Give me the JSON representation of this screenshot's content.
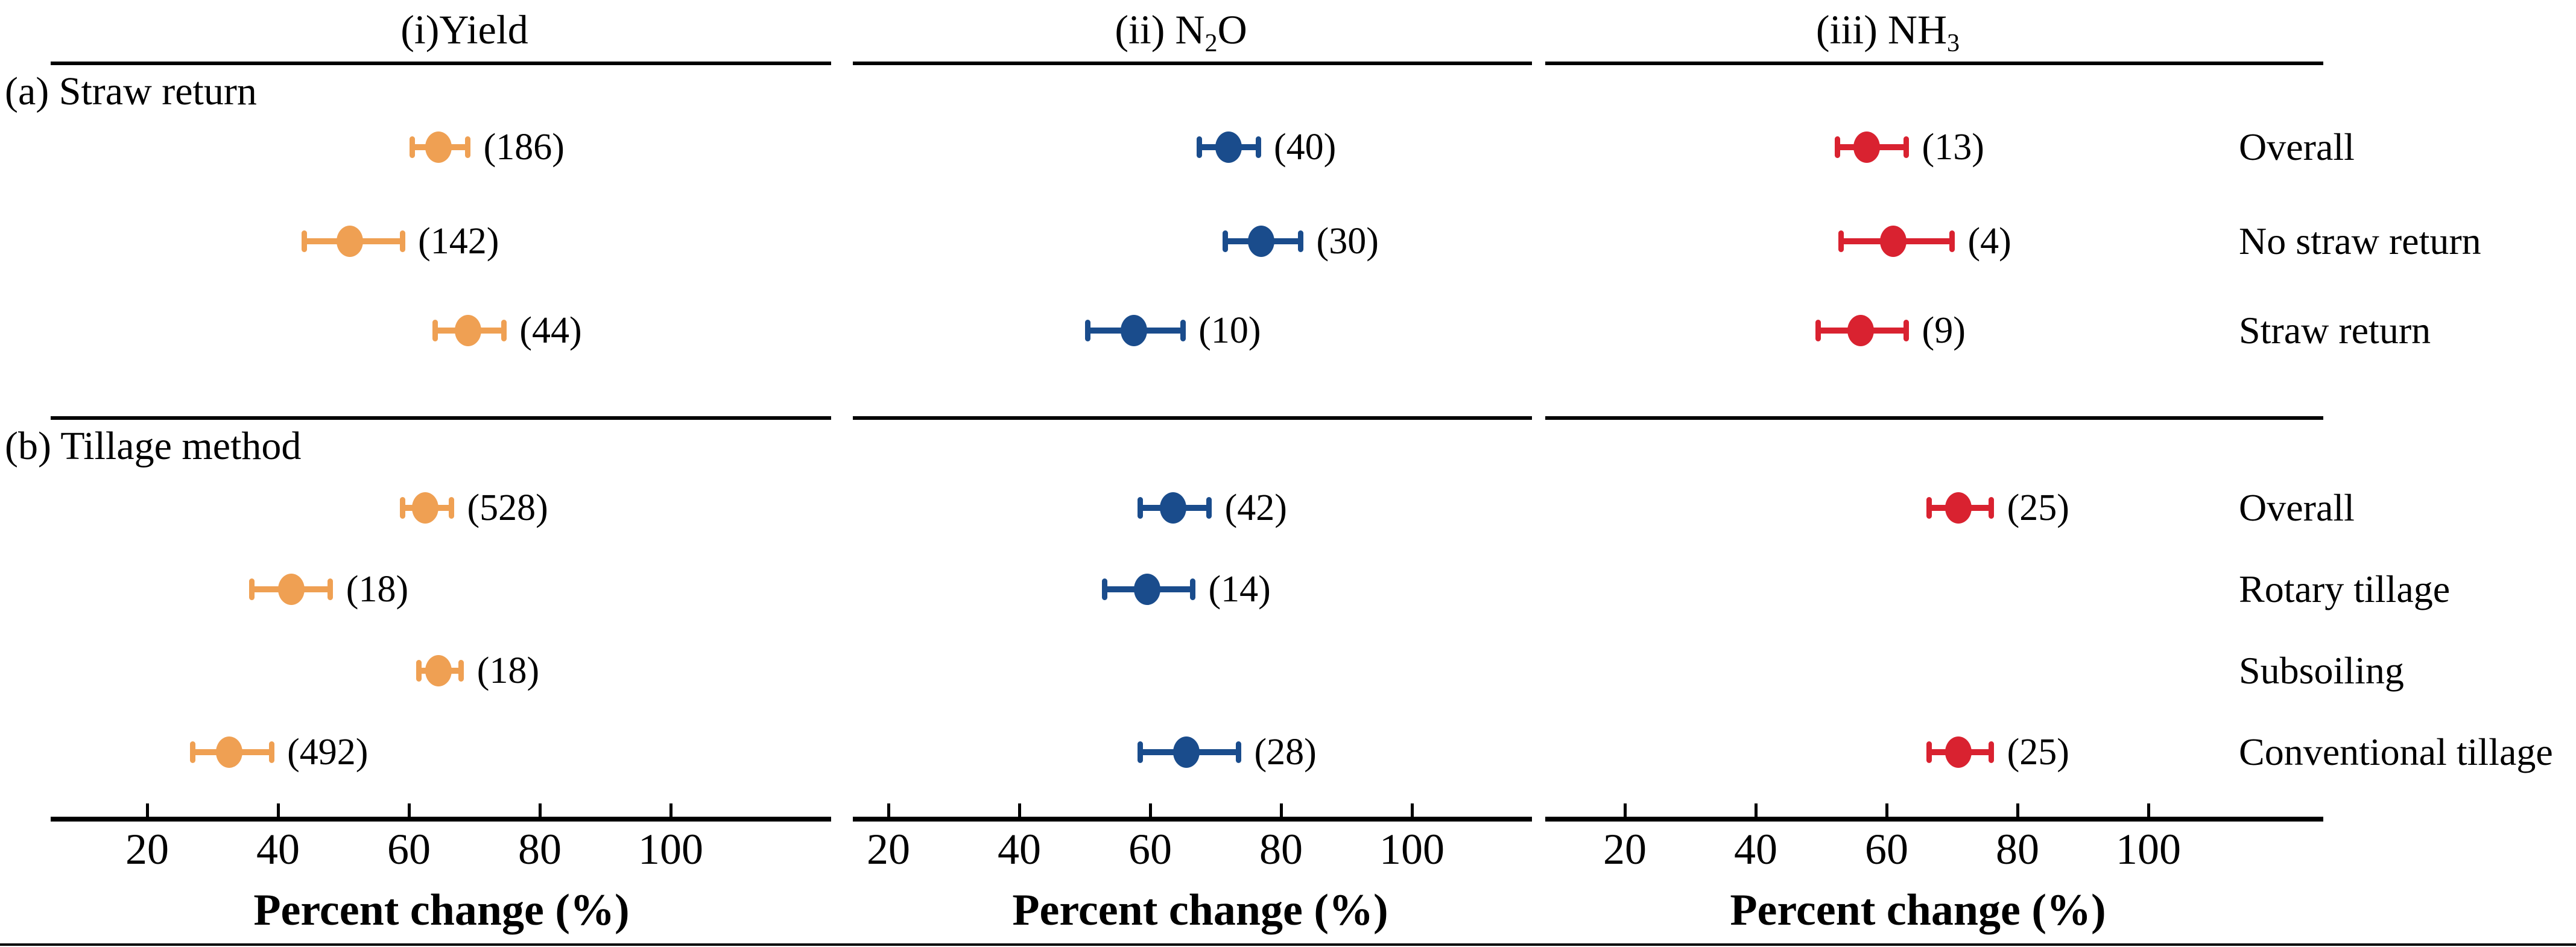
{
  "chart_data": {
    "type": "forest",
    "x_axis": {
      "label": "Percent change (%)",
      "ticks": [
        20,
        40,
        60,
        80,
        100
      ],
      "range": [
        5,
        122
      ],
      "grid": false
    },
    "panels": [
      {
        "id": "yield",
        "title": "(i)Yield",
        "title_segments": [
          {
            "text": "(i)Yield"
          }
        ],
        "color": "#EFA053"
      },
      {
        "id": "n2o",
        "title": "(ii) N2O",
        "title_segments": [
          {
            "text": "(ii) N"
          },
          {
            "text": "2",
            "sub": true
          },
          {
            "text": "O"
          }
        ],
        "color": "#1A4C8C"
      },
      {
        "id": "nh3",
        "title": "(iii) NH3",
        "title_segments": [
          {
            "text": "(iii) NH"
          },
          {
            "text": "3",
            "sub": true
          }
        ],
        "color": "#D92230"
      }
    ],
    "sections": [
      {
        "label": "(a) Straw return",
        "rows": [
          {
            "label": "Overall",
            "values": {
              "yield": {
                "mean": 64.5,
                "lo": 60.5,
                "hi": 69.0,
                "count": 186,
                "count_label": "(186)"
              },
              "n2o": {
                "mean": 72.0,
                "lo": 67.5,
                "hi": 76.5,
                "count": 40,
                "count_label": "(40)"
              },
              "nh3": {
                "mean": 57.0,
                "lo": 52.5,
                "hi": 63.0,
                "count": 13,
                "count_label": "(13)"
              }
            }
          },
          {
            "label": "No straw return",
            "values": {
              "yield": {
                "mean": 51.0,
                "lo": 44.0,
                "hi": 59.0,
                "count": 142,
                "count_label": "(142)"
              },
              "n2o": {
                "mean": 77.0,
                "lo": 71.5,
                "hi": 83.0,
                "count": 30,
                "count_label": "(30)"
              },
              "nh3": {
                "mean": 61.0,
                "lo": 53.0,
                "hi": 70.0,
                "count": 4,
                "count_label": "(4)"
              }
            }
          },
          {
            "label": "Straw return",
            "values": {
              "yield": {
                "mean": 69.0,
                "lo": 64.0,
                "hi": 74.5,
                "count": 44,
                "count_label": "(44)"
              },
              "n2o": {
                "mean": 57.5,
                "lo": 50.5,
                "hi": 65.0,
                "count": 10,
                "count_label": "(10)"
              },
              "nh3": {
                "mean": 56.0,
                "lo": 49.5,
                "hi": 63.0,
                "count": 9,
                "count_label": "(9)"
              }
            }
          }
        ]
      },
      {
        "label": "(b) Tillage method",
        "rows": [
          {
            "label": "Overall",
            "values": {
              "yield": {
                "mean": 62.5,
                "lo": 59.0,
                "hi": 66.5,
                "count": 528,
                "count_label": "(528)"
              },
              "n2o": {
                "mean": 63.5,
                "lo": 58.5,
                "hi": 69.0,
                "count": 42,
                "count_label": "(42)"
              },
              "nh3": {
                "mean": 71.0,
                "lo": 66.5,
                "hi": 76.0,
                "count": 25,
                "count_label": "(25)"
              }
            }
          },
          {
            "label": "Rotary tillage",
            "values": {
              "yield": {
                "mean": 42.0,
                "lo": 36.0,
                "hi": 48.0,
                "count": 18,
                "count_label": "(18)"
              },
              "n2o": {
                "mean": 59.5,
                "lo": 53.0,
                "hi": 66.5,
                "count": 14,
                "count_label": "(14)"
              }
            }
          },
          {
            "label": "Subsoiling",
            "values": {
              "yield": {
                "mean": 64.5,
                "lo": 61.5,
                "hi": 68.0,
                "count": 18,
                "count_label": "(18)"
              }
            }
          },
          {
            "label": "Conventional tillage",
            "values": {
              "yield": {
                "mean": 32.5,
                "lo": 27.0,
                "hi": 39.0,
                "count": 492,
                "count_label": "(492)"
              },
              "n2o": {
                "mean": 65.5,
                "lo": 58.5,
                "hi": 73.5,
                "count": 28,
                "count_label": "(28)"
              },
              "nh3": {
                "mean": 71.0,
                "lo": 66.5,
                "hi": 76.0,
                "count": 25,
                "count_label": "(25)"
              }
            }
          }
        ]
      }
    ]
  }
}
